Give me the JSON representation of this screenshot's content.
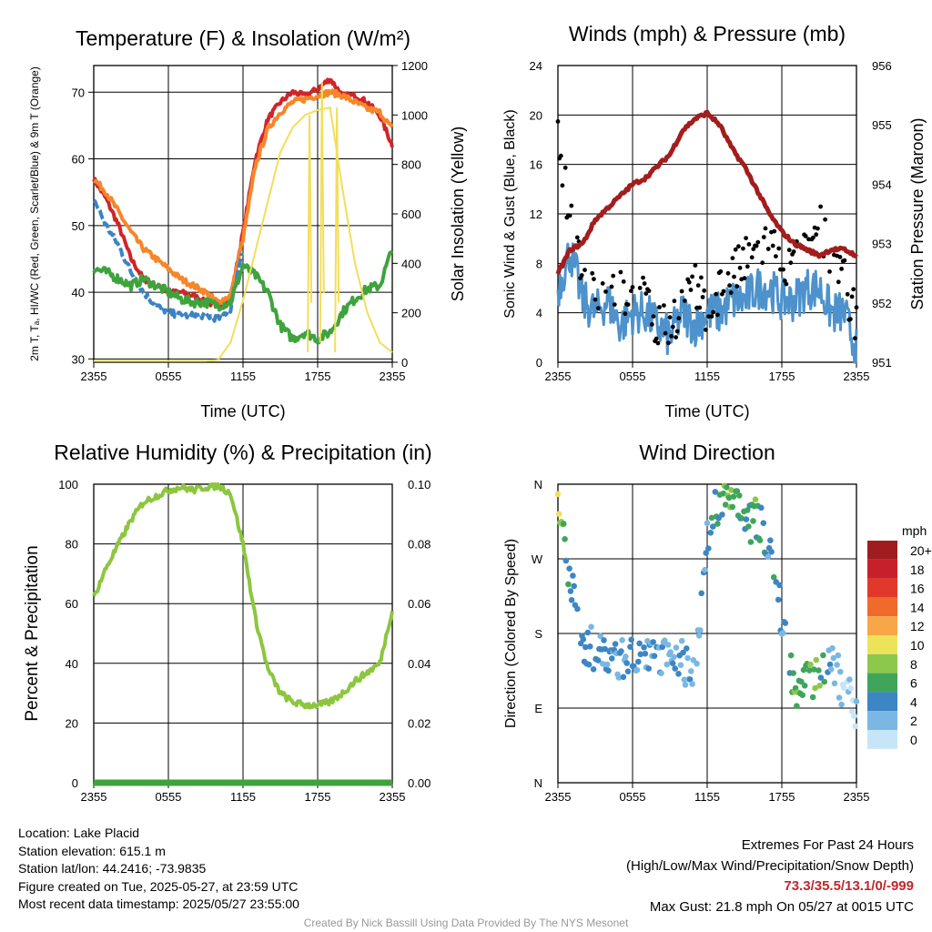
{
  "panels": {
    "temperature": {
      "title": "Temperature (F) & Insolation (W/m²)",
      "ylabel_left": "2m T, Tₐ, HI/WC (Red, Green, Scarlet/Blue) & 9m T (Orange)",
      "ylabel_right": "Solar Insolation (Yellow)",
      "xlabel": "Time (UTC)"
    },
    "winds": {
      "title": "Winds (mph) & Pressure (mb)",
      "ylabel_left": "Sonic Wind & Gust (Blue, Black)",
      "ylabel_right": "Station Pressure (Maroon)",
      "xlabel": "Time (UTC)"
    },
    "humidity": {
      "title": "Relative Humidity (%) & Precipitation (in)",
      "ylabel_left": "Percent & Precipitation"
    },
    "direction": {
      "title": "Wind Direction",
      "ylabel_left": "Direction (Colored By Speed)",
      "legend_title": "mph",
      "legend_labels": [
        "20+",
        "18",
        "16",
        "14",
        "12",
        "10",
        "8",
        "6",
        "4",
        "2",
        "0"
      ],
      "legend_colors": [
        "#a01c1f",
        "#c8202a",
        "#e0392b",
        "#f06a2c",
        "#f7a648",
        "#ede35a",
        "#8cc84b",
        "#3fa55a",
        "#3d86c4",
        "#7ab8e3",
        "#c6e6f7"
      ]
    }
  },
  "info": {
    "location": "Location: Lake Placid",
    "elevation": "Station elevation: 615.1 m",
    "latlon": "Station lat/lon: 44.2416; -73.9835",
    "created": "Figure created on Tue, 2025-05-27, at 23:59 UTC",
    "recent": "Most recent data timestamp: 2025/05/27 23:55:00"
  },
  "extremes": {
    "heading": "Extremes For Past 24 Hours",
    "subheading": "(High/Low/Max Wind/Precipitation/Snow Depth)",
    "values": "73.3/35.5/13.1/0/-999",
    "gust": "Max Gust: 21.8 mph On 05/27 at 0015 UTC"
  },
  "credit": "Created By Nick Bassill Using Data Provided By The NYS Mesonet",
  "chart_data": [
    {
      "type": "line",
      "title": "Temperature (F) & Insolation (W/m²)",
      "xlabel": "Time (UTC)",
      "ylabel": "2m T, Tₐ, HI/WC (Red, Green, Scarlet/Blue) & 9m T (Orange)",
      "y2label": "Solar Insolation (Yellow)",
      "x_ticks": [
        "2355",
        "0555",
        "1155",
        "1755",
        "2355"
      ],
      "y_ticks": [
        30,
        40,
        50,
        60,
        70
      ],
      "y2_ticks": [
        0,
        200,
        400,
        600,
        800,
        1000,
        1200
      ],
      "ylim": [
        29.5,
        74
      ],
      "y2lim": [
        0,
        1200
      ],
      "x": [
        0,
        1,
        2,
        3,
        4,
        5,
        6,
        7,
        8,
        9,
        10,
        11,
        12,
        13,
        14,
        15,
        16,
        17,
        18,
        19,
        20,
        21,
        22,
        23,
        24
      ],
      "series": [
        {
          "color": "#d0252a",
          "axis": "left",
          "values": [
            57,
            54,
            50,
            45,
            42,
            41,
            40,
            40,
            39.5,
            38.5,
            38,
            39,
            49,
            60,
            66,
            68.5,
            70,
            69.5,
            70.5,
            72,
            69.5,
            69.5,
            68.5,
            66.5,
            62
          ]
        },
        {
          "color": "#f5862b",
          "axis": "left",
          "values": [
            57,
            55,
            52,
            49,
            46.5,
            45,
            43.5,
            42,
            41,
            40,
            38.5,
            39.5,
            48,
            59,
            64.5,
            67,
            68.5,
            69,
            69.5,
            70,
            69.5,
            68.5,
            67.5,
            67,
            64.5
          ]
        },
        {
          "color": "#3b83c4",
          "axis": "left",
          "values": [
            54,
            50,
            47,
            43,
            40,
            38,
            37,
            36.5,
            36.5,
            36.5,
            36,
            37.5,
            47,
            null,
            null,
            null,
            null,
            null,
            null,
            null,
            null,
            null,
            null,
            null,
            null
          ]
        },
        {
          "color": "#3fa33d",
          "axis": "left",
          "values": [
            43.5,
            43,
            42,
            41,
            42,
            41,
            40,
            39,
            38.5,
            38.5,
            38,
            38.5,
            44,
            42.5,
            40,
            35,
            33,
            34,
            33,
            34,
            37,
            39,
            40.5,
            41,
            46.5
          ]
        },
        {
          "color": "#f2de5a",
          "axis": "right",
          "values": [
            5,
            5,
            5,
            5,
            5,
            5,
            5,
            5,
            5,
            5,
            10,
            80,
            250,
            450,
            650,
            850,
            950,
            1000,
            1020,
            1030,
            700,
            400,
            200,
            80,
            40
          ]
        }
      ]
    },
    {
      "type": "line",
      "title": "Winds (mph) & Pressure (mb)",
      "xlabel": "Time (UTC)",
      "ylabel": "Sonic Wind & Gust (Blue, Black)",
      "y2label": "Station Pressure (Maroon)",
      "x_ticks": [
        "2355",
        "0555",
        "1155",
        "1755",
        "2355"
      ],
      "y_ticks": [
        0,
        4,
        8,
        12,
        16,
        20,
        24
      ],
      "y2_ticks": [
        951,
        952,
        953,
        954,
        955,
        956
      ],
      "ylim": [
        0,
        24
      ],
      "y2lim": [
        951,
        956
      ],
      "x": [
        0,
        1,
        2,
        3,
        4,
        5,
        6,
        7,
        8,
        9,
        10,
        11,
        12,
        13,
        14,
        15,
        16,
        17,
        18,
        19,
        20,
        21,
        22,
        23,
        24
      ],
      "series": [
        {
          "color": "#4d92cc",
          "axis": "left",
          "type": "line",
          "values": [
            6,
            9,
            5,
            4,
            5,
            3,
            4,
            4,
            3,
            2,
            4,
            3,
            4,
            4,
            5,
            5,
            6,
            6,
            5,
            5,
            6,
            6,
            4,
            4,
            1
          ]
        },
        {
          "color": "#000000",
          "axis": "left",
          "type": "scatter",
          "values": [
            18,
            11,
            8,
            6,
            6,
            6,
            5,
            5,
            3,
            3,
            5,
            6,
            4,
            6,
            7,
            8,
            9,
            10,
            8,
            8,
            9,
            11,
            9,
            7,
            3
          ]
        },
        {
          "color": "#a31d1d",
          "axis": "right",
          "values": [
            952.5,
            952.9,
            953.0,
            953.4,
            953.6,
            953.8,
            954.0,
            954.1,
            954.3,
            954.5,
            954.9,
            955.1,
            955.2,
            955.0,
            954.6,
            954.3,
            953.9,
            953.5,
            953.2,
            953.0,
            952.9,
            952.8,
            952.9,
            952.9,
            952.8
          ]
        }
      ]
    },
    {
      "type": "line",
      "title": "Relative Humidity (%) & Precipitation (in)",
      "ylabel": "Percent & Precipitation",
      "x_ticks": [
        "2355",
        "0555",
        "1155",
        "1755",
        "2355"
      ],
      "y_ticks": [
        0,
        20,
        40,
        60,
        80,
        100
      ],
      "y2_ticks": [
        "0.00",
        "0.02",
        "0.04",
        "0.06",
        "0.08",
        "0.10"
      ],
      "ylim": [
        0,
        100
      ],
      "y2lim": [
        0,
        0.1
      ],
      "x": [
        0,
        1,
        2,
        3,
        4,
        5,
        6,
        7,
        8,
        9,
        10,
        11,
        12,
        13,
        14,
        15,
        16,
        17,
        18,
        19,
        20,
        21,
        22,
        23,
        24
      ],
      "series": [
        {
          "color": "#8cc63f",
          "axis": "left",
          "values": [
            62,
            72,
            80,
            88,
            94,
            96,
            98,
            99,
            98,
            99,
            99.5,
            97,
            80,
            55,
            38,
            30,
            27,
            26,
            26,
            27,
            30,
            34,
            37,
            40,
            58
          ]
        },
        {
          "color": "#3fa33d",
          "axis": "right",
          "values": [
            0,
            0,
            0,
            0,
            0,
            0,
            0,
            0,
            0,
            0,
            0,
            0,
            0,
            0,
            0,
            0,
            0,
            0,
            0,
            0,
            0,
            0,
            0,
            0,
            0
          ]
        }
      ]
    },
    {
      "type": "scatter",
      "title": "Wind Direction",
      "ylabel": "Direction (Colored By Speed)",
      "x_ticks": [
        "2355",
        "0555",
        "1155",
        "1755",
        "2355"
      ],
      "y_ticks": [
        "N",
        "E",
        "S",
        "W",
        "N"
      ],
      "ylim": [
        0,
        360
      ],
      "legend_title": "mph",
      "x": [
        0,
        1,
        2,
        3,
        4,
        5,
        6,
        7,
        8,
        9,
        10,
        11,
        12,
        13,
        14,
        15,
        16,
        17,
        18,
        19,
        20,
        21,
        22,
        23,
        24
      ],
      "directions": [
        330,
        240,
        170,
        160,
        150,
        150,
        150,
        150,
        150,
        150,
        150,
        120,
        300,
        340,
        350,
        310,
        320,
        290,
        200,
        110,
        120,
        130,
        150,
        110,
        90
      ],
      "speeds": [
        10,
        4,
        4,
        3,
        3,
        3,
        3,
        3,
        3,
        3,
        3,
        2,
        4,
        6,
        7,
        5,
        6,
        4,
        3,
        7,
        6,
        7,
        2,
        1,
        1
      ]
    }
  ]
}
